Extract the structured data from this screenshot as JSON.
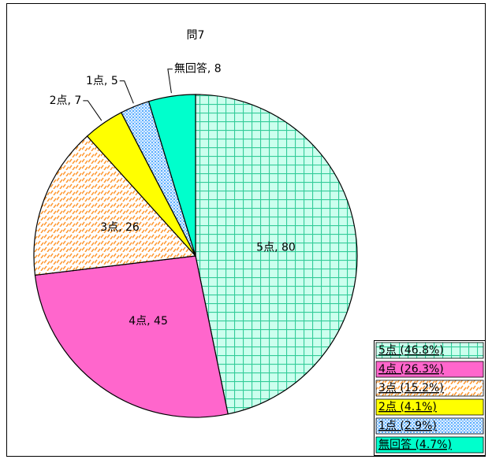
{
  "chart_data": {
    "type": "pie",
    "title": "問7",
    "categories": [
      "5点",
      "4点",
      "3点",
      "2点",
      "1点",
      "無回答"
    ],
    "values": [
      80,
      45,
      26,
      7,
      5,
      8
    ],
    "value_labels": [
      "5点, 80",
      "4点, 45",
      "3点, 26",
      "2点, 7",
      "1点, 5",
      "無回答, 8"
    ],
    "legend_labels": [
      "5点 (46.8%)",
      "4点 (26.3%)",
      "3点 (15.2%)",
      "2点 (4.1%)",
      "1点 (2.9%)",
      "無回答 (4.7%)"
    ],
    "colors": [
      "#33cc99",
      "#ff66cc",
      "#ff9933",
      "#ffff00",
      "#3399ff",
      "#00ffcc"
    ],
    "legend_position": "lower right"
  }
}
